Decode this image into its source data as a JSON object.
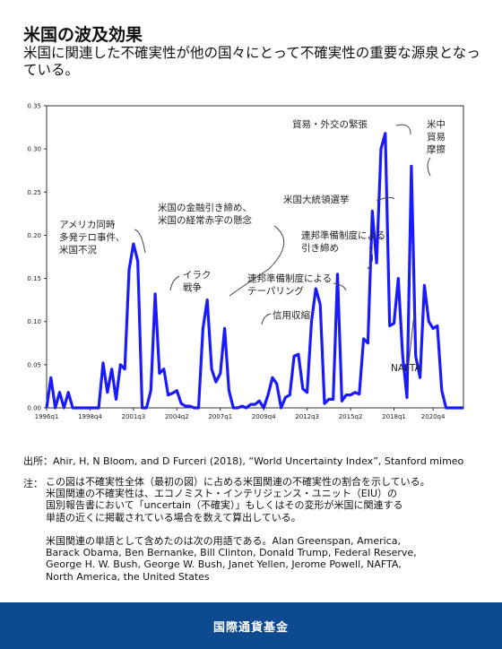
{
  "title": "米国の波及効果",
  "subtitle": "米国に関連した不確実性が他の国々にとって不確実性の重要な源泉となっている。",
  "chart_data": {
    "type": "line",
    "series": [
      {
        "color": "#1a1aff",
        "x": [
          0,
          1,
          2,
          3,
          4,
          5,
          6,
          7,
          8,
          9,
          10,
          11,
          12,
          13,
          14,
          15,
          16,
          17,
          18,
          19,
          20,
          21,
          22,
          23,
          24,
          25,
          26,
          27,
          28,
          29,
          30,
          31,
          32,
          33,
          34,
          35,
          36,
          37,
          38,
          39,
          40,
          41,
          42,
          43,
          44,
          45,
          46,
          47,
          48,
          49,
          50,
          51,
          52,
          53,
          54,
          55,
          56,
          57,
          58,
          59,
          60,
          61,
          62,
          63,
          64,
          65,
          66,
          67,
          68,
          69,
          70,
          71,
          72,
          73,
          74,
          75,
          76,
          77,
          78,
          79,
          80,
          81,
          82,
          83,
          84,
          85,
          86,
          87,
          88,
          89,
          90,
          91,
          92,
          93,
          94,
          95,
          96
        ],
        "y": [
          0.0,
          0.035,
          0.0,
          0.018,
          0.0,
          0.018,
          0.0,
          0.0,
          0.0,
          0.0,
          0.0,
          0.0,
          0.0,
          0.052,
          0.018,
          0.045,
          0.01,
          0.05,
          0.045,
          0.16,
          0.19,
          0.17,
          0.0,
          0.0,
          0.02,
          0.132,
          0.04,
          0.045,
          0.015,
          0.017,
          0.02,
          0.005,
          0.002,
          0.002,
          0.0,
          0.0,
          0.092,
          0.125,
          0.045,
          0.03,
          0.04,
          0.092,
          0.02,
          0.0,
          0.0,
          0.002,
          0.0,
          0.004,
          0.004,
          0.008,
          0.0,
          0.015,
          0.035,
          0.028,
          0.0,
          0.012,
          0.015,
          0.06,
          0.062,
          0.022,
          0.018,
          0.1,
          0.138,
          0.12,
          0.005,
          0.01,
          0.01,
          0.155,
          0.008,
          0.015,
          0.015,
          0.018,
          0.016,
          0.08,
          0.075,
          0.228,
          0.168,
          0.3,
          0.318,
          0.095,
          0.098,
          0.15,
          0.06,
          0.012,
          0.28,
          0.06,
          0.035,
          0.142,
          0.1,
          0.092,
          0.095,
          0.02,
          0.0,
          0.0,
          0.0,
          0.0,
          0.0
        ]
      }
    ],
    "xlim": [
      0,
      96
    ],
    "ylim": [
      0,
      0.35
    ],
    "yticks": [
      0.0,
      0.05,
      0.1,
      0.15,
      0.2,
      0.25,
      0.3,
      0.35
    ],
    "ytick_labels": [
      "0.00",
      "0.05",
      "0.10",
      "0.15",
      "0.20",
      "0.25",
      "0.30",
      "0.35"
    ],
    "xticks": [
      0,
      10,
      20,
      30,
      40,
      50,
      60,
      70,
      80,
      89
    ],
    "xtick_labels": [
      "1996q1",
      "1998q4",
      "2001q3",
      "2004q2",
      "2007q1",
      "2009q4",
      "2012q3",
      "2015q2",
      "2018q1",
      "2020q4"
    ],
    "annotations": [
      {
        "lines": [
          "アメリカ同時",
          "多発テロ事件、",
          "米国不況"
        ],
        "x": 20,
        "y": 0.19
      },
      {
        "lines": [
          "イラク",
          "戦争"
        ],
        "x": 25,
        "y": 0.132
      },
      {
        "lines": [
          "米国の金融引き締め、",
          "米国の経常赤字の懸念"
        ],
        "x": 37,
        "y": 0.125
      },
      {
        "lines": [
          "信用収縮"
        ],
        "x": 41,
        "y": 0.092
      },
      {
        "lines": [
          "連邦準備制度による",
          "テーパリング"
        ],
        "x": 62,
        "y": 0.138
      },
      {
        "lines": [
          "連邦準備制度による",
          "引き締め"
        ],
        "x": 67,
        "y": 0.155
      },
      {
        "lines": [
          "米国大統領選挙"
        ],
        "x": 75,
        "y": 0.228
      },
      {
        "lines": [
          "貿易・外交の緊張"
        ],
        "x": 78,
        "y": 0.318
      },
      {
        "lines": [
          "米中",
          "貿易",
          "摩擦"
        ],
        "x": 84,
        "y": 0.28
      },
      {
        "lines": [
          "NAFTA"
        ],
        "x": 79,
        "y": 0.095
      }
    ]
  },
  "source": "出所：Ahir, H, N Bloom, and D Furceri (2018), “World Uncertainty Index”, Stanford mimeo",
  "note_label": "注：",
  "note_lines": [
    "この図は不確実性全体（最初の図）に占める米国関連の不確実性の割合を示している。",
    "米国関連の不確実性は、エコノミスト・インテリジェンス・ユニット（EIU）の",
    "国別報告書において「uncertain（不確実）」もしくはその変形が米国に関連する",
    "単語の近くに掲載されている場合を数えて算出している。",
    "",
    "米国関連の単語として含めたのは次の用語である。Alan Greenspan, America,",
    "Barack Obama, Ben Bernanke, Bill Clinton, Donald Trump, Federal Reserve,",
    "George H. W. Bush, George W. Bush, Janet Yellen, Jerome Powell, NAFTA,",
    "North America, the United States"
  ],
  "footer": "国際通貨基金"
}
